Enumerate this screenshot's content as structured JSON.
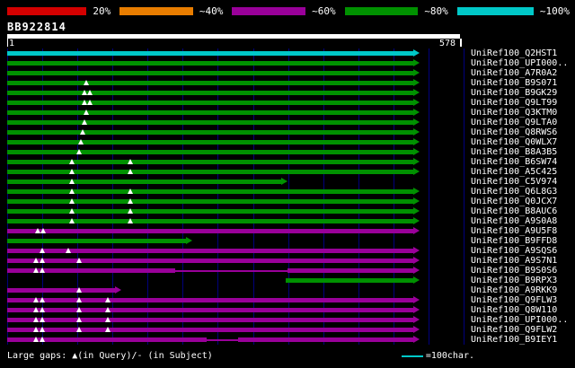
{
  "query": {
    "name": "BB922814",
    "start": "1",
    "end": "578"
  },
  "footer": {
    "note": "Large gaps: ▲(in Query)/- (in Subject)",
    "scale_label": "=100char.",
    "scale_line_color": "#00c8c8"
  },
  "chart_data": {
    "type": "bar",
    "title": "BB922814",
    "xlabel": "query position",
    "x_range": [
      1,
      578
    ],
    "grid": true,
    "identity_scale": [
      {
        "label": "20%",
        "color": "#d40000"
      },
      {
        "label": "~40%",
        "color": "#e87d00"
      },
      {
        "label": "~60%",
        "color": "#990099"
      },
      {
        "label": "~80%",
        "color": "#009100"
      },
      {
        "label": "~100%",
        "color": "#00c8c8"
      }
    ],
    "rows": [
      {
        "label": "UniRef100_Q2HST1",
        "identity": "~100%",
        "segments": [
          {
            "start": 0,
            "end": 518
          }
        ],
        "arrow": true,
        "gaps": []
      },
      {
        "label": "UniRef100_UPI000..",
        "identity": "~80%",
        "segments": [
          {
            "start": 0,
            "end": 518
          }
        ],
        "arrow": true,
        "gaps": []
      },
      {
        "label": "UniRef100_A7R0A2",
        "identity": "~80%",
        "segments": [
          {
            "start": 0,
            "end": 518
          }
        ],
        "arrow": true,
        "gaps": []
      },
      {
        "label": "UniRef100_B9S071",
        "identity": "~80%",
        "segments": [
          {
            "start": 0,
            "end": 518
          }
        ],
        "arrow": true,
        "gaps": [
          101
        ]
      },
      {
        "label": "UniRef100_B9GK29",
        "identity": "~80%",
        "segments": [
          {
            "start": 0,
            "end": 518
          }
        ],
        "arrow": true,
        "gaps": [
          99,
          106
        ]
      },
      {
        "label": "UniRef100_Q9LT99",
        "identity": "~80%",
        "segments": [
          {
            "start": 0,
            "end": 518
          }
        ],
        "arrow": true,
        "gaps": [
          99,
          106
        ]
      },
      {
        "label": "UniRef100_Q3KTM0",
        "identity": "~80%",
        "segments": [
          {
            "start": 0,
            "end": 518
          }
        ],
        "arrow": true,
        "gaps": [
          101
        ]
      },
      {
        "label": "UniRef100_Q9LTA0",
        "identity": "~80%",
        "segments": [
          {
            "start": 0,
            "end": 518
          }
        ],
        "arrow": true,
        "gaps": [
          99
        ]
      },
      {
        "label": "UniRef100_Q8RWS6",
        "identity": "~80%",
        "segments": [
          {
            "start": 0,
            "end": 518
          }
        ],
        "arrow": true,
        "gaps": [
          96
        ]
      },
      {
        "label": "UniRef100_Q0WLX7",
        "identity": "~80%",
        "segments": [
          {
            "start": 0,
            "end": 518
          }
        ],
        "arrow": true,
        "gaps": [
          94
        ]
      },
      {
        "label": "UniRef100_B8A3B5",
        "identity": "~80%",
        "segments": [
          {
            "start": 0,
            "end": 518
          }
        ],
        "arrow": true,
        "gaps": [
          92
        ]
      },
      {
        "label": "UniRef100_B6SW74",
        "identity": "~80%",
        "segments": [
          {
            "start": 0,
            "end": 518
          }
        ],
        "arrow": true,
        "gaps": [
          83,
          157
        ]
      },
      {
        "label": "UniRef100_A5C425",
        "identity": "~80%",
        "segments": [
          {
            "start": 0,
            "end": 518
          }
        ],
        "arrow": true,
        "gaps": [
          83,
          157
        ]
      },
      {
        "label": "UniRef100_C5V974",
        "identity": "~80%",
        "segments": [
          {
            "start": 0,
            "end": 350
          }
        ],
        "arrow": true,
        "gaps": [
          83
        ]
      },
      {
        "label": "UniRef100_Q6L8G3",
        "identity": "~80%",
        "segments": [
          {
            "start": 0,
            "end": 518
          }
        ],
        "arrow": true,
        "gaps": [
          83,
          157
        ]
      },
      {
        "label": "UniRef100_Q0JCX7",
        "identity": "~80%",
        "segments": [
          {
            "start": 0,
            "end": 518
          }
        ],
        "arrow": true,
        "gaps": [
          83,
          157
        ]
      },
      {
        "label": "UniRef100_B8AUC6",
        "identity": "~80%",
        "segments": [
          {
            "start": 0,
            "end": 518
          }
        ],
        "arrow": true,
        "gaps": [
          83,
          157
        ]
      },
      {
        "label": "UniRef100_A9S0A8",
        "identity": "~80%",
        "segments": [
          {
            "start": 0,
            "end": 518
          }
        ],
        "arrow": true,
        "gaps": [
          83,
          157
        ]
      },
      {
        "label": "UniRef100_A9U5F8",
        "identity": "~60%",
        "segments": [
          {
            "start": 0,
            "end": 518
          }
        ],
        "arrow": true,
        "gaps": [
          39,
          46
        ]
      },
      {
        "label": "UniRef100_B9FFD8",
        "identity": "~80%",
        "segments": [
          {
            "start": 0,
            "end": 228
          }
        ],
        "arrow": true,
        "gaps": []
      },
      {
        "label": "UniRef100_A9SQS6",
        "identity": "~60%",
        "segments": [
          {
            "start": 0,
            "end": 518
          }
        ],
        "arrow": true,
        "gaps": [
          45,
          78
        ]
      },
      {
        "label": "UniRef100_A9S7N1",
        "identity": "~60%",
        "segments": [
          {
            "start": 0,
            "end": 518
          }
        ],
        "arrow": true,
        "gaps": [
          37,
          45,
          92
        ]
      },
      {
        "label": "UniRef100_B9S0S6",
        "identity": "~60%",
        "segments": [
          {
            "start": 0,
            "end": 214
          },
          {
            "start": 214,
            "end": 358,
            "thin": true
          },
          {
            "start": 358,
            "end": 518
          }
        ],
        "arrow": true,
        "gaps": [
          37,
          45
        ]
      },
      {
        "label": "UniRef100_B9RPX3",
        "identity": "~80%",
        "segments": [
          {
            "start": 355,
            "end": 518
          }
        ],
        "arrow": true,
        "gaps": []
      },
      {
        "label": "UniRef100_A9RKK9",
        "identity": "~60%",
        "segments": [
          {
            "start": 0,
            "end": 138
          }
        ],
        "arrow": true,
        "gaps": [
          92
        ]
      },
      {
        "label": "UniRef100_Q9FLW3",
        "identity": "~60%",
        "segments": [
          {
            "start": 0,
            "end": 518
          }
        ],
        "arrow": true,
        "gaps": [
          37,
          45,
          92,
          128
        ]
      },
      {
        "label": "UniRef100_Q8W110",
        "identity": "~60%",
        "segments": [
          {
            "start": 0,
            "end": 518
          }
        ],
        "arrow": true,
        "gaps": [
          37,
          45,
          92,
          128
        ]
      },
      {
        "label": "UniRef100_UPI000..",
        "identity": "~60%",
        "segments": [
          {
            "start": 0,
            "end": 518
          }
        ],
        "arrow": true,
        "gaps": [
          37,
          45,
          92,
          128
        ]
      },
      {
        "label": "UniRef100_Q9FLW2",
        "identity": "~60%",
        "segments": [
          {
            "start": 0,
            "end": 518
          }
        ],
        "arrow": true,
        "gaps": [
          37,
          45,
          92,
          128
        ]
      },
      {
        "label": "UniRef100_B9IEY1",
        "identity": "~60%",
        "segments": [
          {
            "start": 0,
            "end": 255
          },
          {
            "start": 255,
            "end": 295,
            "thin": true
          },
          {
            "start": 295,
            "end": 518
          }
        ],
        "arrow": true,
        "gaps": [
          37,
          45
        ]
      }
    ]
  }
}
